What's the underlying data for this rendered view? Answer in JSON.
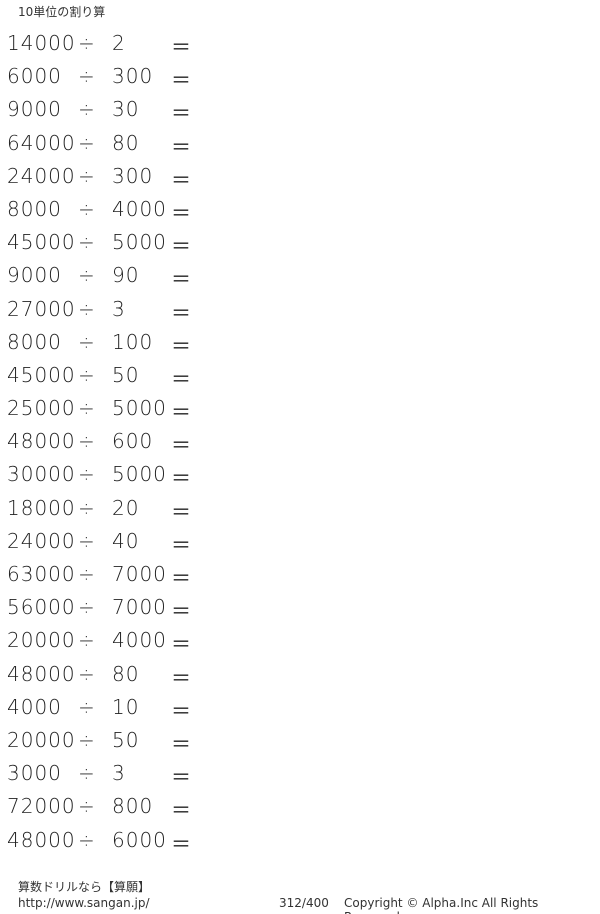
{
  "title": "10単位の割り算",
  "operator": "÷",
  "equals": "＝",
  "problems": [
    [
      "14000",
      "2"
    ],
    [
      "6000",
      "300"
    ],
    [
      "9000",
      "30"
    ],
    [
      "64000",
      "80"
    ],
    [
      "24000",
      "300"
    ],
    [
      "8000",
      "4000"
    ],
    [
      "45000",
      "5000"
    ],
    [
      "9000",
      "90"
    ],
    [
      "27000",
      "3"
    ],
    [
      "8000",
      "100"
    ],
    [
      "45000",
      "50"
    ],
    [
      "25000",
      "5000"
    ],
    [
      "48000",
      "600"
    ],
    [
      "30000",
      "5000"
    ],
    [
      "18000",
      "20"
    ],
    [
      "24000",
      "40"
    ],
    [
      "63000",
      "7000"
    ],
    [
      "56000",
      "7000"
    ],
    [
      "20000",
      "4000"
    ],
    [
      "48000",
      "80"
    ],
    [
      "4000",
      "10"
    ],
    [
      "20000",
      "50"
    ],
    [
      "3000",
      "3"
    ],
    [
      "72000",
      "800"
    ],
    [
      "48000",
      "6000"
    ]
  ],
  "footer": {
    "brand": "算数ドリルなら【算願】",
    "url": "http://www.sangan.jp/",
    "page": "312/400",
    "copyright": "Copyright © Alpha.Inc All Rights Reserved."
  }
}
